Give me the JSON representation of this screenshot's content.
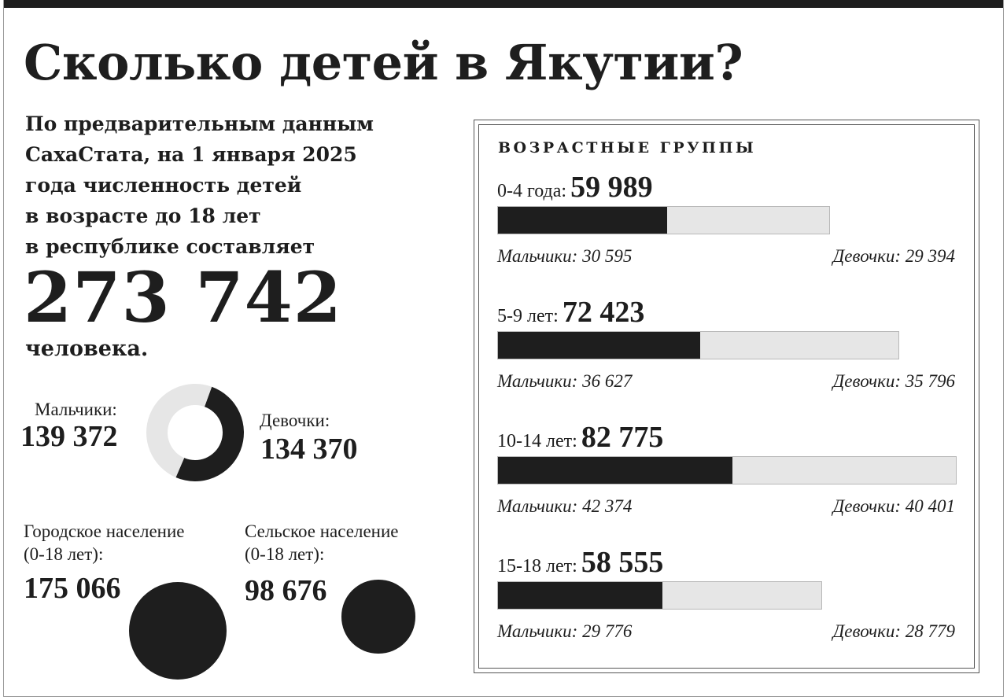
{
  "title": "Сколько детей в Якутии?",
  "intro_lines": [
    "По предварительным данным",
    "СахаСтата, на 1 января 2025",
    "года численность детей",
    "в возрасте до 18 лет",
    "в республике составляет"
  ],
  "total": {
    "value_text": "273 742",
    "unit": "человека."
  },
  "gender": {
    "boys_label": "Мальчики:",
    "boys_value_text": "139 372",
    "girls_label": "Девочки:",
    "girls_value_text": "134 370"
  },
  "population": {
    "urban_label_line1": "Городское население",
    "urban_label_line2": "(0-18 лет):",
    "urban_value_text": "175 066",
    "rural_label_line1": "Сельское население",
    "rural_label_line2": "(0-18 лет):",
    "rural_value_text": "98 676"
  },
  "age_panel": {
    "title": "ВОЗРАСТНЫЕ ГРУППЫ"
  },
  "chart_data": [
    {
      "type": "pie",
      "categories": [
        "Мальчики",
        "Девочки"
      ],
      "values": [
        139372,
        134370
      ],
      "colors": [
        "#1e1e1e",
        "#e6e6e6"
      ]
    },
    {
      "type": "bar",
      "categories": [
        "Городское население (0-18 лет)",
        "Сельское население (0-18 лет)"
      ],
      "values": [
        175066,
        98676
      ],
      "colors": [
        "#1e1e1e",
        "#1e1e1e"
      ]
    },
    {
      "type": "bar",
      "stacked": true,
      "orientation": "horizontal",
      "categories": [
        "0-4 года",
        "5-9 лет",
        "10-14 лет",
        "15-18 лет"
      ],
      "category_labels": [
        "0-4 года:",
        "5-9 лет:",
        "10-14 лет:",
        "15-18 лет:"
      ],
      "totals": [
        59989,
        72423,
        82775,
        58555
      ],
      "totals_text": [
        "59 989",
        "72 423",
        "82 775",
        "58 555"
      ],
      "series": [
        {
          "label": "Мальчики:",
          "values": [
            30595,
            36627,
            42374,
            29776
          ],
          "values_text": [
            "30 595",
            "36 627",
            "42 374",
            "29 776"
          ],
          "color": "#1e1e1e"
        },
        {
          "label": "Девочки:",
          "values": [
            29394,
            35796,
            40401,
            28779
          ],
          "values_text": [
            "29 394",
            "35 796",
            "40 401",
            "28 779"
          ],
          "color": "#e6e6e6"
        }
      ]
    }
  ]
}
